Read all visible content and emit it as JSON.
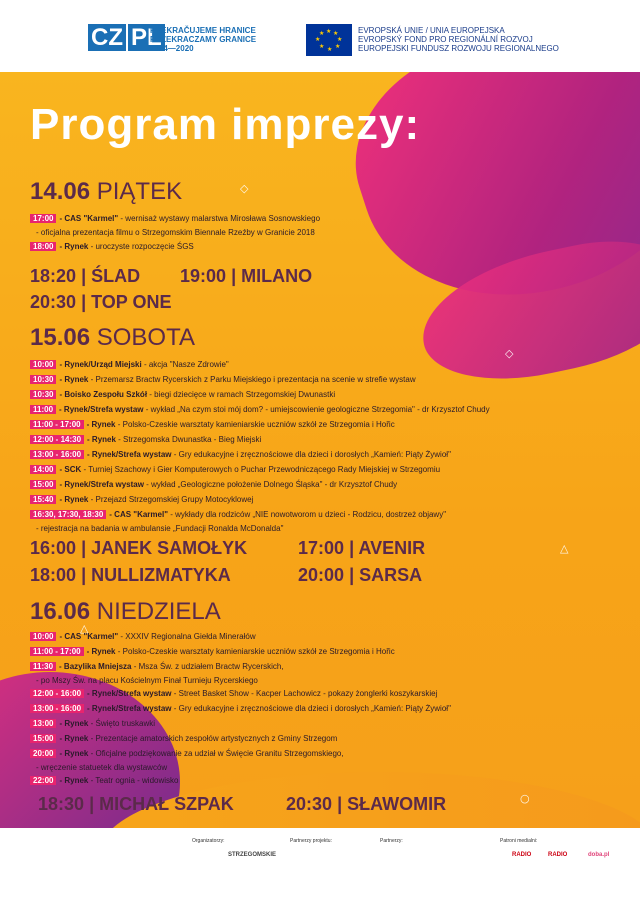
{
  "header": {
    "logo_cz": "CZ",
    "logo_pl": "PL",
    "cz_line1": "PŘEKRAČUJEME HRANICE",
    "cz_line2": "PRZEKRACZAMY GRANICE",
    "cz_line3": "2014—2020",
    "eu_line1": "EVROPSKÁ UNIE / UNIA EUROPEJSKA",
    "eu_line2": "EVROPSKÝ FOND PRO REGIONÁLNÍ ROZVOJ",
    "eu_line3": "EUROPEJSKI FUNDUSZ ROZWOJU REGIONALNEGO"
  },
  "title": "Program imprezy:",
  "day1": {
    "date": "14.06",
    "name": "PIĄTEK",
    "rows": [
      {
        "time": "17:00",
        "place": "- CAS \"Karmel\"",
        "text": " - wernisaż wystawy malarstwa Mirosława Sosnowskiego"
      },
      {
        "cont": "- oficjalna prezentacja filmu o Strzegomskim Biennale Rzeźby w Granicie 2018"
      },
      {
        "time": "18:00",
        "place": "- Rynek",
        "text": " - uroczyste rozpoczęcie ŚGS"
      }
    ],
    "bands": [
      {
        "time": "18:20",
        "name": "ŚLAD"
      },
      {
        "time": "19:00",
        "name": "MILANO"
      },
      {
        "time": "20:30",
        "name": "TOP ONE"
      }
    ]
  },
  "day2": {
    "date": "15.06",
    "name": "SOBOTA",
    "rows": [
      {
        "time": "10:00",
        "place": "- Rynek/Urząd Miejski",
        "text": " - akcja \"Nasze Zdrowie\""
      },
      {
        "time": "10:30",
        "place": "- Rynek",
        "text": " - Przemarsz Bractw Rycerskich z Parku Miejskiego i prezentacja na scenie w strefie wystaw"
      },
      {
        "time": "10:30",
        "place": "- Boisko Zespołu Szkół",
        "text": " - biegi dziecięce w ramach Strzegomskiej Dwunastki"
      },
      {
        "time": "11:00",
        "place": "- Rynek/Strefa wystaw",
        "text": " - wykład „Na czym stoi mój dom? - umiejscowienie geologiczne Strzegomia\" - dr Krzysztof Chudy"
      },
      {
        "time": "11:00 - 17:00",
        "place": "- Rynek",
        "text": " - Polsko-Czeskie warsztaty kamieniarskie uczniów szkół ze Strzegomia i Hořic"
      },
      {
        "time": "12:00 - 14:30",
        "place": "- Rynek",
        "text": " - Strzegomska Dwunastka - Bieg Miejski"
      },
      {
        "time": "13:00 - 16:00",
        "place": "- Rynek/Strefa wystaw",
        "text": " - Gry edukacyjne i zręcznościowe dla dzieci i dorosłych „Kamień: Piąty Żywioł\""
      },
      {
        "time": "14:00",
        "place": "- SCK",
        "text": " - Turniej Szachowy i Gier Komputerowych o Puchar Przewodniczącego Rady Miejskiej w Strzegomiu"
      },
      {
        "time": "15:00",
        "place": "- Rynek/Strefa wystaw",
        "text": " - wykład „Geologiczne położenie Dolnego Śląska\" - dr Krzysztof Chudy"
      },
      {
        "time": "15:40",
        "place": "- Rynek",
        "text": " - Przejazd Strzegomskiej Grupy Motocyklowej"
      },
      {
        "time": "16:30, 17:30, 18:30",
        "place": "- CAS \"Karmel\"",
        "text": " - wykłady dla rodziców „NIE nowotworom u dzieci - Rodzicu, dostrzeż objawy\""
      },
      {
        "cont": "- rejestracja na badania w ambulansie „Fundacji Ronalda McDonalda\""
      }
    ],
    "bands": [
      {
        "time": "16:00",
        "name": "JANEK SAMOŁYK"
      },
      {
        "time": "17:00",
        "name": "AVENIR"
      },
      {
        "time": "18:00",
        "name": "NULLIZMATYKA"
      },
      {
        "time": "20:00",
        "name": "SARSA"
      }
    ]
  },
  "day3": {
    "date": "16.06",
    "name": "NIEDZIELA",
    "rows": [
      {
        "time": "10:00",
        "place": "- CAS \"Karmel\"",
        "text": " - XXXIV Regionalna Giełda Minerałów"
      },
      {
        "time": "11:00 - 17:00",
        "place": "- Rynek",
        "text": " - Polsko-Czeskie warsztaty kamieniarskie uczniów szkół ze Strzegomia i Hořic"
      },
      {
        "time": "11:30",
        "place": "- Bazylika Mniejsza",
        "text": " - Msza Św. z udziałem Bractw Rycerskich,"
      },
      {
        "cont": "- po Mszy Św. na placu Kościelnym Finał Turnieju Rycerskiego"
      },
      {
        "time": "12:00 - 16:00",
        "place": "- Rynek/Strefa wystaw",
        "text": " - Street Basket Show - Kacper Lachowicz - pokazy żonglerki koszykarskiej"
      },
      {
        "time": "13:00 - 16:00",
        "place": "- Rynek/Strefa wystaw",
        "text": " - Gry edukacyjne i zręcznościowe dla dzieci i dorosłych „Kamień: Piąty Żywioł\""
      },
      {
        "time": "13:00",
        "place": "- Rynek",
        "text": " - Święto truskawki"
      },
      {
        "time": "15:00",
        "place": "- Rynek",
        "text": " - Prezentacje amatorskich zespołów artystycznych z Gminy Strzegom"
      },
      {
        "time": "20:00",
        "place": "- Rynek",
        "text": " - Oficjalne podziękowanie za udział w Święcie Granitu Strzegomskiego,"
      },
      {
        "cont": "- wręczenie statuetek dla wystawców"
      },
      {
        "time": "22:00",
        "place": "- Rynek",
        "text": " - Teatr ognia - widowisko"
      }
    ],
    "bands": [
      {
        "time": "18:30",
        "name": "MICHAŁ SZPAK"
      },
      {
        "time": "20:30",
        "name": "SŁAWOMIR"
      }
    ]
  },
  "footer": {
    "labels": [
      "Organizatorzy:",
      "Partnerzy projektu:",
      "Partnerzy:",
      "Patroni medialni:"
    ],
    "logos": [
      "STRZEGOMSKIE",
      "RADIO",
      "RADIO",
      "doba.pl"
    ]
  }
}
